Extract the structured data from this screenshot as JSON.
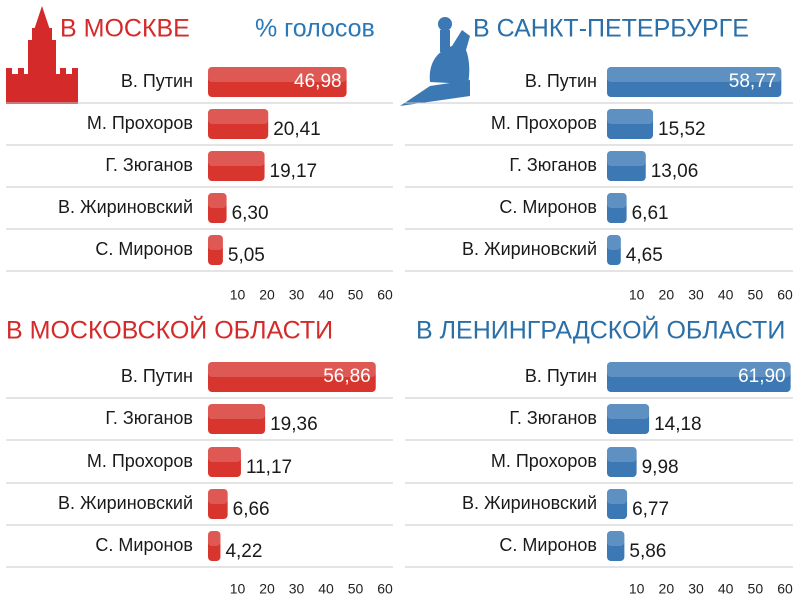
{
  "chart_data": [
    {
      "type": "hbar",
      "title": "В МОСКВЕ",
      "subtitle": "% голосов",
      "title_color": "#d42a2a",
      "subtitle_color": "#2a78b8",
      "color": "#d8352f",
      "categories": [
        "В. Путин",
        "М. Прохоров",
        "Г. Зюганов",
        "В. Жириновский",
        "С. Миронов"
      ],
      "values": [
        46.98,
        20.41,
        19.17,
        6.3,
        5.05
      ],
      "value_labels": [
        "46,98",
        "20,41",
        "19,17",
        "6,30",
        "5,05"
      ],
      "xlim": [
        0,
        60
      ],
      "xticks": [
        10,
        20,
        30,
        40,
        50,
        60
      ]
    },
    {
      "type": "hbar",
      "title": "В САНКТ-ПЕТЕРБУРГЕ",
      "title_color": "#2a6fa8",
      "color": "#3b78b4",
      "categories": [
        "В. Путин",
        "М. Прохоров",
        "Г. Зюганов",
        "С. Миронов",
        "В. Жириновский"
      ],
      "values": [
        58.77,
        15.52,
        13.06,
        6.61,
        4.65
      ],
      "value_labels": [
        "58,77",
        "15,52",
        "13,06",
        "6,61",
        "4,65"
      ],
      "xlim": [
        0,
        60
      ],
      "xticks": [
        10,
        20,
        30,
        40,
        50,
        60
      ]
    },
    {
      "type": "hbar",
      "title": "В МОСКОВСКОЙ ОБЛАСТИ",
      "title_color": "#d42a2a",
      "color": "#d8352f",
      "categories": [
        "В. Путин",
        "Г. Зюганов",
        "М. Прохоров",
        "В. Жириновский",
        "С. Миронов"
      ],
      "values": [
        56.86,
        19.36,
        11.17,
        6.66,
        4.22
      ],
      "value_labels": [
        "56,86",
        "19,36",
        "11,17",
        "6,66",
        "4,22"
      ],
      "xlim": [
        0,
        60
      ],
      "xticks": [
        10,
        20,
        30,
        40,
        50,
        60
      ]
    },
    {
      "type": "hbar",
      "title": "В ЛЕНИНГРАДСКОЙ ОБЛАСТИ",
      "title_color": "#2a6fa8",
      "color": "#3b78b4",
      "categories": [
        "В. Путин",
        "Г. Зюганов",
        "М. Прохоров",
        "В. Жириновский",
        "С. Миронов"
      ],
      "values": [
        61.9,
        14.18,
        9.98,
        6.77,
        5.86
      ],
      "value_labels": [
        "61,90",
        "14,18",
        "9,98",
        "6,77",
        "5,86"
      ],
      "xlim": [
        0,
        60
      ],
      "xticks": [
        10,
        20,
        30,
        40,
        50,
        60
      ]
    }
  ]
}
